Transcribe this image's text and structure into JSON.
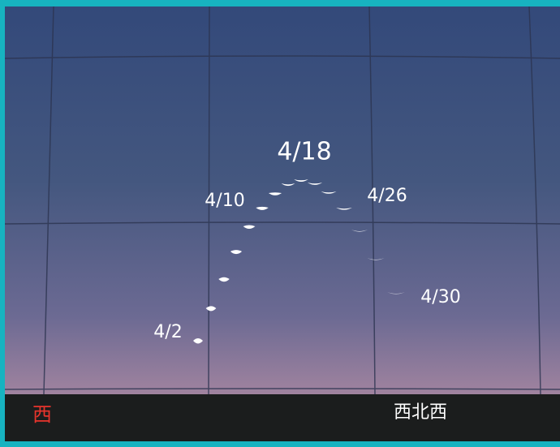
{
  "date_labels": [
    "4/2",
    "4/10",
    "4/18",
    "4/26",
    "4/30"
  ],
  "directions": {
    "west": "西",
    "west_northwest": "西北西"
  }
}
